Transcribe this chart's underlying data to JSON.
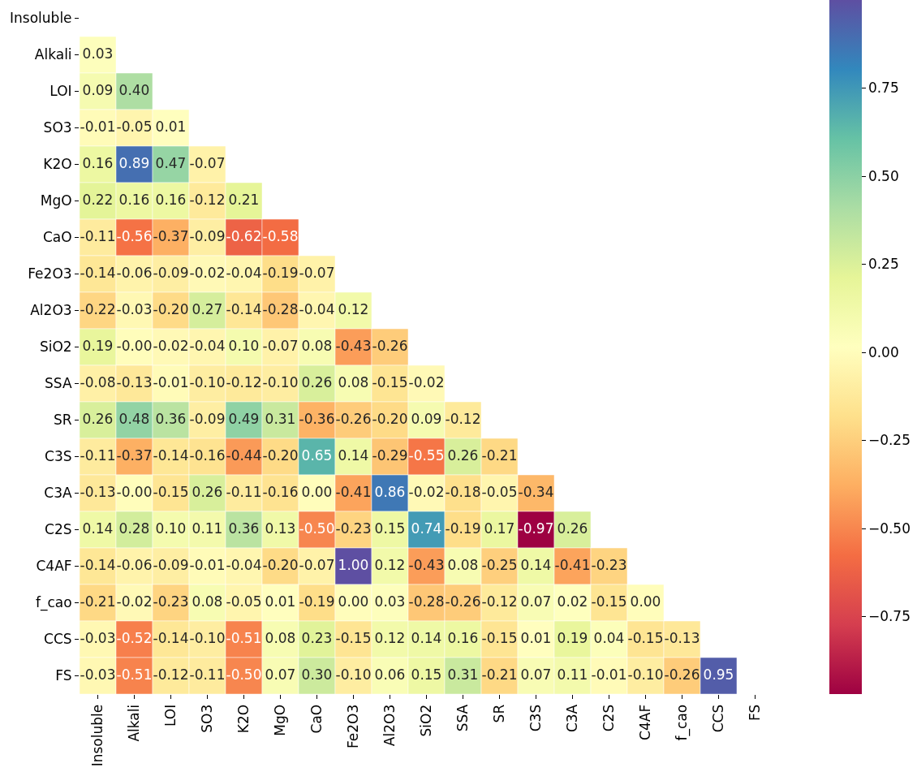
{
  "chart_data": {
    "type": "heatmap",
    "categories": [
      "Insoluble",
      "Alkali",
      "LOI",
      "SO3",
      "K2O",
      "MgO",
      "CaO",
      "Fe2O3",
      "Al2O3",
      "SiO2",
      "SSA",
      "SR",
      "C3S",
      "C3A",
      "C2S",
      "C4AF",
      "f_cao",
      "CCS",
      "FS"
    ],
    "y_categories": [
      "Insoluble",
      "Alkali",
      "LOI",
      "SO3",
      "K2O",
      "MgO",
      "CaO",
      "Fe2O3",
      "Al2O3",
      "SiO2",
      "SSA",
      "SR",
      "C3S",
      "C3A",
      "C2S",
      "C4AF",
      "f_cao",
      "CCS",
      "FS"
    ],
    "cells": [
      [
        null,
        null,
        null,
        null,
        null,
        null,
        null,
        null,
        null,
        null,
        null,
        null,
        null,
        null,
        null,
        null,
        null,
        null,
        null
      ],
      [
        0.03,
        null,
        null,
        null,
        null,
        null,
        null,
        null,
        null,
        null,
        null,
        null,
        null,
        null,
        null,
        null,
        null,
        null,
        null
      ],
      [
        0.09,
        0.4,
        null,
        null,
        null,
        null,
        null,
        null,
        null,
        null,
        null,
        null,
        null,
        null,
        null,
        null,
        null,
        null,
        null
      ],
      [
        -0.01,
        -0.05,
        0.01,
        null,
        null,
        null,
        null,
        null,
        null,
        null,
        null,
        null,
        null,
        null,
        null,
        null,
        null,
        null,
        null
      ],
      [
        0.16,
        0.89,
        0.47,
        -0.07,
        null,
        null,
        null,
        null,
        null,
        null,
        null,
        null,
        null,
        null,
        null,
        null,
        null,
        null,
        null
      ],
      [
        0.22,
        0.16,
        0.16,
        -0.12,
        0.21,
        null,
        null,
        null,
        null,
        null,
        null,
        null,
        null,
        null,
        null,
        null,
        null,
        null,
        null
      ],
      [
        -0.11,
        -0.56,
        -0.37,
        -0.09,
        -0.62,
        -0.58,
        null,
        null,
        null,
        null,
        null,
        null,
        null,
        null,
        null,
        null,
        null,
        null,
        null
      ],
      [
        -0.14,
        -0.06,
        -0.09,
        -0.02,
        -0.04,
        -0.19,
        -0.07,
        null,
        null,
        null,
        null,
        null,
        null,
        null,
        null,
        null,
        null,
        null,
        null
      ],
      [
        -0.22,
        -0.03,
        -0.2,
        0.27,
        -0.14,
        -0.28,
        -0.04,
        0.12,
        null,
        null,
        null,
        null,
        null,
        null,
        null,
        null,
        null,
        null,
        null
      ],
      [
        0.19,
        0.0,
        -0.02,
        -0.04,
        0.1,
        -0.07,
        0.08,
        -0.43,
        -0.26,
        null,
        null,
        null,
        null,
        null,
        null,
        null,
        null,
        null,
        null
      ],
      [
        -0.08,
        -0.13,
        -0.01,
        -0.1,
        -0.12,
        -0.1,
        0.26,
        0.08,
        -0.15,
        -0.02,
        null,
        null,
        null,
        null,
        null,
        null,
        null,
        null,
        null
      ],
      [
        0.26,
        0.48,
        0.36,
        -0.09,
        0.49,
        0.31,
        -0.36,
        -0.26,
        -0.2,
        0.09,
        -0.12,
        null,
        null,
        null,
        null,
        null,
        null,
        null,
        null
      ],
      [
        -0.11,
        -0.37,
        -0.14,
        -0.16,
        -0.44,
        -0.2,
        0.65,
        0.14,
        -0.29,
        -0.55,
        0.26,
        -0.21,
        null,
        null,
        null,
        null,
        null,
        null,
        null
      ],
      [
        -0.13,
        0.0,
        -0.15,
        0.26,
        -0.11,
        -0.16,
        0.0,
        -0.41,
        0.86,
        -0.02,
        -0.18,
        -0.05,
        -0.34,
        null,
        null,
        null,
        null,
        null,
        null
      ],
      [
        0.14,
        0.28,
        0.1,
        0.11,
        0.36,
        0.13,
        -0.5,
        -0.23,
        0.15,
        0.74,
        -0.19,
        0.17,
        -0.97,
        0.26,
        null,
        null,
        null,
        null,
        null
      ],
      [
        -0.14,
        -0.06,
        -0.09,
        -0.01,
        -0.04,
        -0.2,
        -0.07,
        1.0,
        0.12,
        -0.43,
        0.08,
        -0.25,
        0.14,
        -0.41,
        -0.23,
        null,
        null,
        null,
        null
      ],
      [
        -0.21,
        -0.02,
        -0.23,
        0.08,
        -0.05,
        0.01,
        -0.19,
        0.0,
        0.03,
        -0.28,
        -0.26,
        -0.12,
        0.07,
        0.02,
        -0.15,
        0.0,
        null,
        null,
        null
      ],
      [
        -0.03,
        -0.52,
        -0.14,
        -0.1,
        -0.51,
        0.08,
        0.23,
        -0.15,
        0.12,
        0.14,
        0.16,
        -0.15,
        0.01,
        0.19,
        0.04,
        -0.15,
        -0.13,
        null,
        null
      ],
      [
        -0.03,
        -0.51,
        -0.12,
        -0.11,
        -0.5,
        0.07,
        0.3,
        -0.1,
        0.06,
        0.15,
        0.31,
        -0.21,
        0.07,
        0.11,
        -0.01,
        -0.1,
        -0.26,
        0.95,
        null
      ]
    ],
    "cell_labels": [
      [
        null,
        null,
        null,
        null,
        null,
        null,
        null,
        null,
        null,
        null,
        null,
        null,
        null,
        null,
        null,
        null,
        null,
        null,
        null
      ],
      [
        "0.03",
        null,
        null,
        null,
        null,
        null,
        null,
        null,
        null,
        null,
        null,
        null,
        null,
        null,
        null,
        null,
        null,
        null,
        null
      ],
      [
        "0.09",
        "0.40",
        null,
        null,
        null,
        null,
        null,
        null,
        null,
        null,
        null,
        null,
        null,
        null,
        null,
        null,
        null,
        null,
        null
      ],
      [
        "-0.01",
        "-0.05",
        "0.01",
        null,
        null,
        null,
        null,
        null,
        null,
        null,
        null,
        null,
        null,
        null,
        null,
        null,
        null,
        null,
        null
      ],
      [
        "0.16",
        "0.89",
        "0.47",
        "-0.07",
        null,
        null,
        null,
        null,
        null,
        null,
        null,
        null,
        null,
        null,
        null,
        null,
        null,
        null,
        null
      ],
      [
        "0.22",
        "0.16",
        "0.16",
        "-0.12",
        "0.21",
        null,
        null,
        null,
        null,
        null,
        null,
        null,
        null,
        null,
        null,
        null,
        null,
        null,
        null
      ],
      [
        "-0.11",
        "-0.56",
        "-0.37",
        "-0.09",
        "-0.62",
        "-0.58",
        null,
        null,
        null,
        null,
        null,
        null,
        null,
        null,
        null,
        null,
        null,
        null,
        null
      ],
      [
        "-0.14",
        "-0.06",
        "-0.09",
        "-0.02",
        "-0.04",
        "-0.19",
        "-0.07",
        null,
        null,
        null,
        null,
        null,
        null,
        null,
        null,
        null,
        null,
        null,
        null
      ],
      [
        "-0.22",
        "-0.03",
        "-0.20",
        "0.27",
        "-0.14",
        "-0.28",
        "-0.04",
        "0.12",
        null,
        null,
        null,
        null,
        null,
        null,
        null,
        null,
        null,
        null,
        null
      ],
      [
        "0.19",
        "-0.00",
        "-0.02",
        "-0.04",
        "0.10",
        "-0.07",
        "0.08",
        "-0.43",
        "-0.26",
        null,
        null,
        null,
        null,
        null,
        null,
        null,
        null,
        null,
        null
      ],
      [
        "-0.08",
        "-0.13",
        "-0.01",
        "-0.10",
        "-0.12",
        "-0.10",
        "0.26",
        "0.08",
        "-0.15",
        "-0.02",
        null,
        null,
        null,
        null,
        null,
        null,
        null,
        null,
        null
      ],
      [
        "0.26",
        "0.48",
        "0.36",
        "-0.09",
        "0.49",
        "0.31",
        "-0.36",
        "-0.26",
        "-0.20",
        "0.09",
        "-0.12",
        null,
        null,
        null,
        null,
        null,
        null,
        null,
        null
      ],
      [
        "-0.11",
        "-0.37",
        "-0.14",
        "-0.16",
        "-0.44",
        "-0.20",
        "0.65",
        "0.14",
        "-0.29",
        "-0.55",
        "0.26",
        "-0.21",
        null,
        null,
        null,
        null,
        null,
        null,
        null
      ],
      [
        "-0.13",
        "-0.00",
        "-0.15",
        "0.26",
        "-0.11",
        "-0.16",
        "0.00",
        "-0.41",
        "0.86",
        "-0.02",
        "-0.18",
        "-0.05",
        "-0.34",
        null,
        null,
        null,
        null,
        null,
        null
      ],
      [
        "0.14",
        "0.28",
        "0.10",
        "0.11",
        "0.36",
        "0.13",
        "-0.50",
        "-0.23",
        "0.15",
        "0.74",
        "-0.19",
        "0.17",
        "-0.97",
        "0.26",
        null,
        null,
        null,
        null,
        null
      ],
      [
        "-0.14",
        "-0.06",
        "-0.09",
        "-0.01",
        "-0.04",
        "-0.20",
        "-0.07",
        "1.00",
        "0.12",
        "-0.43",
        "0.08",
        "-0.25",
        "0.14",
        "-0.41",
        "-0.23",
        null,
        null,
        null,
        null
      ],
      [
        "-0.21",
        "-0.02",
        "-0.23",
        "0.08",
        "-0.05",
        "0.01",
        "-0.19",
        "0.00",
        "0.03",
        "-0.28",
        "-0.26",
        "-0.12",
        "0.07",
        "0.02",
        "-0.15",
        "0.00",
        null,
        null,
        null
      ],
      [
        "-0.03",
        "-0.52",
        "-0.14",
        "-0.10",
        "-0.51",
        "0.08",
        "0.23",
        "-0.15",
        "0.12",
        "0.14",
        "0.16",
        "-0.15",
        "0.01",
        "0.19",
        "0.04",
        "-0.15",
        "-0.13",
        null,
        null
      ],
      [
        "-0.03",
        "-0.51",
        "-0.12",
        "-0.11",
        "-0.50",
        "0.07",
        "0.30",
        "-0.10",
        "0.06",
        "0.15",
        "0.31",
        "-0.21",
        "0.07",
        "0.11",
        "-0.01",
        "-0.10",
        "-0.26",
        "0.95",
        null
      ]
    ],
    "clim": [
      -0.97,
      1.0
    ],
    "cticks": [
      {
        "value": -0.75,
        "label": "−0.75"
      },
      {
        "value": -0.5,
        "label": "−0.50"
      },
      {
        "value": -0.25,
        "label": "−0.25"
      },
      {
        "value": 0,
        "label": "0.00"
      },
      {
        "value": 0.25,
        "label": "0.25"
      },
      {
        "value": 0.5,
        "label": "0.50"
      },
      {
        "value": 0.75,
        "label": "0.75"
      }
    ],
    "data_labels": true
  }
}
